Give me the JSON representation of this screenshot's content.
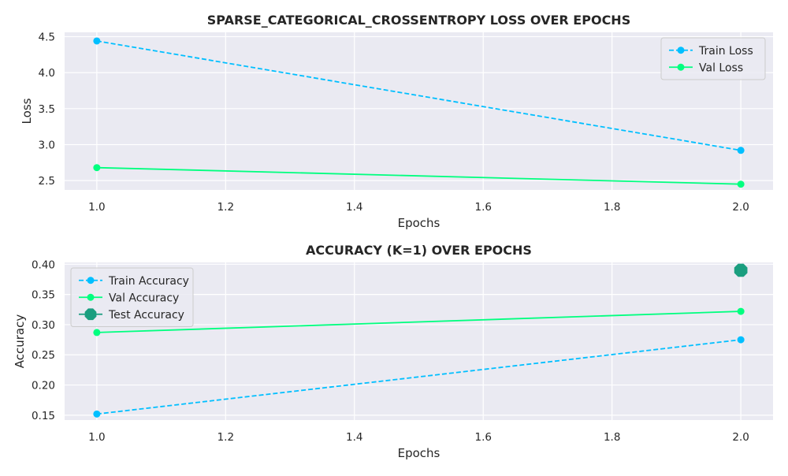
{
  "chart_data": [
    {
      "type": "line",
      "title": "SPARSE_CATEGORICAL_CROSSENTROPY LOSS OVER EPOCHS",
      "xlabel": "Epochs",
      "ylabel": "Loss",
      "xlim": [
        0.95,
        2.05
      ],
      "ylim": [
        2.37,
        4.56
      ],
      "xticks": [
        "1.0",
        "1.2",
        "1.4",
        "1.6",
        "1.8",
        "2.0"
      ],
      "yticks": [
        "2.5",
        "3.0",
        "3.5",
        "4.0",
        "4.5"
      ],
      "grid": true,
      "legend": "top-right",
      "series": [
        {
          "name": "Train Loss",
          "x": [
            1.0,
            2.0
          ],
          "values": [
            4.44,
            2.92
          ],
          "color": "#00bfff",
          "dashed": true
        },
        {
          "name": "Val Loss",
          "x": [
            1.0,
            2.0
          ],
          "values": [
            2.68,
            2.45
          ],
          "color": "#00ff7f",
          "dashed": false
        }
      ]
    },
    {
      "type": "line",
      "title": "ACCURACY (K=1) OVER EPOCHS",
      "xlabel": "Epochs",
      "ylabel": "Accuracy",
      "xlim": [
        0.95,
        2.05
      ],
      "ylim": [
        0.142,
        0.403
      ],
      "xticks": [
        "1.0",
        "1.2",
        "1.4",
        "1.6",
        "1.8",
        "2.0"
      ],
      "yticks": [
        "0.15",
        "0.20",
        "0.25",
        "0.30",
        "0.35",
        "0.40"
      ],
      "grid": true,
      "legend": "top-left",
      "series": [
        {
          "name": "Train Accuracy",
          "x": [
            1.0,
            2.0
          ],
          "values": [
            0.152,
            0.275
          ],
          "color": "#00bfff",
          "dashed": true
        },
        {
          "name": "Val Accuracy",
          "x": [
            1.0,
            2.0
          ],
          "values": [
            0.287,
            0.322
          ],
          "color": "#00ff7f",
          "dashed": false
        },
        {
          "name": "Test Accuracy",
          "x": [
            2.0
          ],
          "values": [
            0.39
          ],
          "color": "#1a9e7f",
          "marker": "octagon"
        }
      ]
    }
  ]
}
